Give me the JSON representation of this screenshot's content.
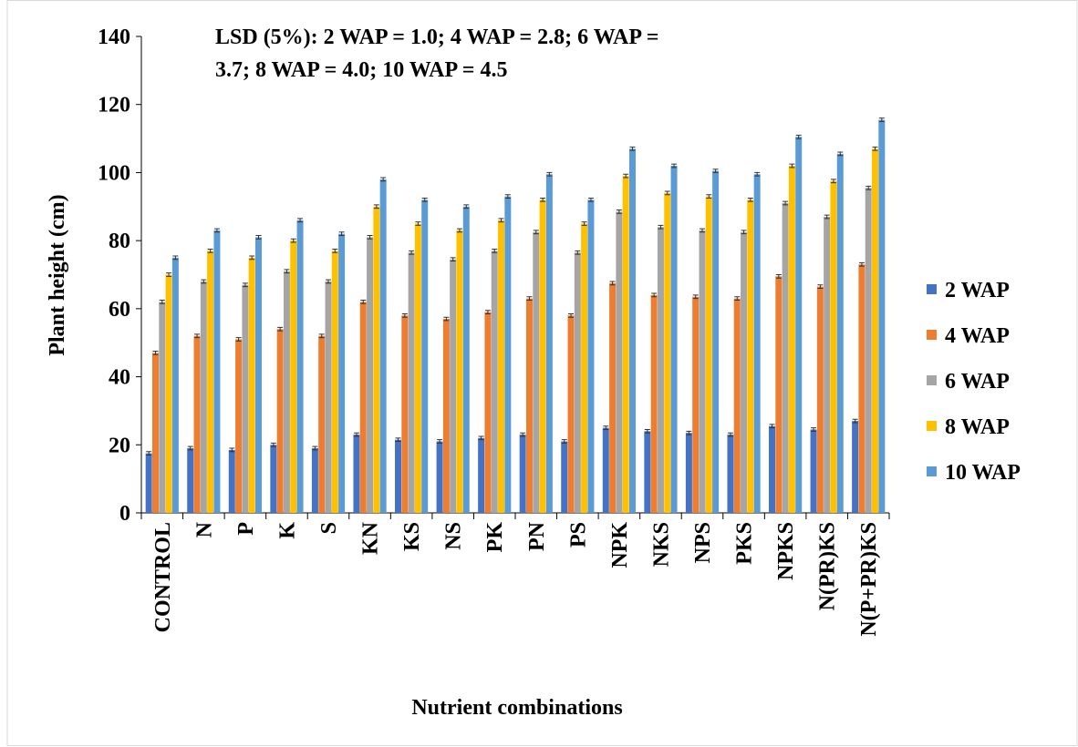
{
  "chart_data": {
    "type": "bar",
    "annotation": [
      "LSD (5%): 2 WAP = 1.0; 4 WAP = 2.8; 6 WAP =",
      "3.7; 8 WAP = 4.0; 10 WAP = 4.5"
    ],
    "x_label": "Nutrient combinations",
    "y_label": "Plant height (cm)",
    "categories": [
      "CONTROL",
      "N",
      "P",
      "K",
      "S",
      "KN",
      "KS",
      "NS",
      "PK",
      "PN",
      "PS",
      "NPK",
      "NKS",
      "NPS",
      "PKS",
      "NPKS",
      "N(PR)KS",
      "N(P+PR)KS"
    ],
    "series": [
      {
        "name": "2 WAP",
        "color": "#4472c4",
        "values": [
          17.5,
          19,
          18.5,
          20,
          19,
          23,
          21.5,
          21,
          22,
          23,
          21,
          25,
          24,
          23.5,
          23,
          25.5,
          24.5,
          27
        ],
        "errors": [
          0.5,
          0.5,
          0.5,
          0.5,
          0.5,
          0.5,
          0.5,
          0.5,
          0.5,
          0.5,
          0.5,
          0.5,
          0.5,
          0.5,
          0.5,
          0.5,
          0.5,
          0.5
        ]
      },
      {
        "name": "4 WAP",
        "color": "#ed7d31",
        "values": [
          47,
          52,
          51,
          54,
          52,
          62,
          58,
          57,
          59,
          63,
          58,
          67.5,
          64,
          63.5,
          63,
          69.5,
          66.5,
          73
        ],
        "errors": [
          0.5,
          0.5,
          0.5,
          0.5,
          0.5,
          0.5,
          0.5,
          0.5,
          0.5,
          0.5,
          0.5,
          0.5,
          0.5,
          0.5,
          0.5,
          0.5,
          0.5,
          0.5
        ]
      },
      {
        "name": "6 WAP",
        "color": "#a5a5a5",
        "values": [
          62,
          68,
          67,
          71,
          68,
          81,
          76.5,
          74.5,
          77,
          82.5,
          76.5,
          88.5,
          84,
          83,
          82.5,
          91,
          87,
          95.5
        ],
        "errors": [
          0.5,
          0.5,
          0.5,
          0.5,
          0.5,
          0.5,
          0.5,
          0.5,
          0.5,
          0.5,
          0.5,
          0.5,
          0.5,
          0.5,
          0.5,
          0.5,
          0.5,
          0.5
        ]
      },
      {
        "name": "8 WAP",
        "color": "#ffc000",
        "values": [
          70,
          77,
          75,
          80,
          77,
          90,
          85,
          83,
          86,
          92,
          85,
          99,
          94,
          93,
          92,
          102,
          97.5,
          107
        ],
        "errors": [
          0.5,
          0.5,
          0.5,
          0.5,
          0.5,
          0.5,
          0.5,
          0.5,
          0.5,
          0.5,
          0.5,
          0.5,
          0.5,
          0.5,
          0.5,
          0.5,
          0.5,
          0.5
        ]
      },
      {
        "name": "10 WAP",
        "color": "#5b9bd5",
        "values": [
          75,
          83,
          81,
          86,
          82,
          98,
          92,
          90,
          93,
          99.5,
          92,
          107,
          102,
          100.5,
          99.5,
          110.5,
          105.5,
          115.5
        ],
        "errors": [
          0.5,
          0.5,
          0.5,
          0.5,
          0.5,
          0.5,
          0.5,
          0.5,
          0.5,
          0.5,
          0.5,
          0.5,
          0.5,
          0.5,
          0.5,
          0.5,
          0.5,
          0.5
        ]
      }
    ],
    "ylim": [
      0,
      140
    ],
    "yticks": [
      0,
      20,
      40,
      60,
      80,
      100,
      120,
      140
    ],
    "legend": "right",
    "grid": false
  }
}
